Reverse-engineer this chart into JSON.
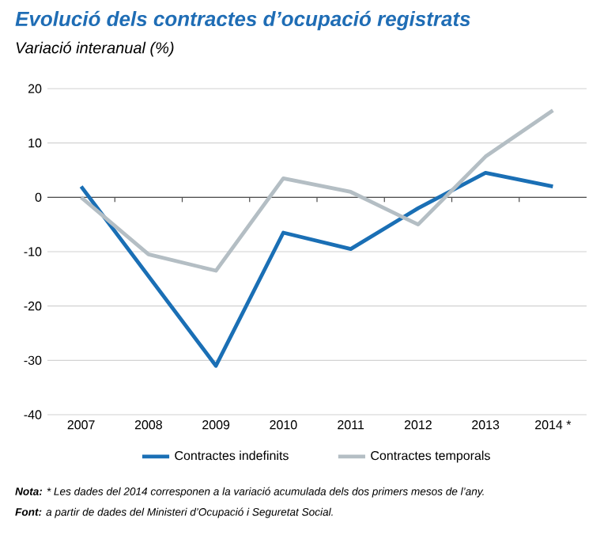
{
  "chart_data": {
    "type": "line",
    "title": "Evolució dels contractes d’ocupació registrats",
    "subtitle": "Variació interanual (%)",
    "categories": [
      "2007",
      "2008",
      "2009",
      "2010",
      "2011",
      "2012",
      "2013",
      "2014 *"
    ],
    "series": [
      {
        "name": "Contractes indefinits",
        "color": "#1a6fb5",
        "values": [
          2,
          -14.5,
          -31,
          -6.5,
          -9.5,
          -2,
          4.5,
          2
        ]
      },
      {
        "name": "Contractes temporals",
        "color": "#b4bec4",
        "values": [
          0,
          -10.5,
          -13.5,
          3.5,
          1,
          -5,
          7.5,
          16
        ]
      }
    ],
    "ylim": [
      -40,
      20
    ],
    "yticks": [
      -40,
      -30,
      -20,
      -10,
      0,
      10,
      20
    ],
    "grid": "y",
    "legend": "bottom",
    "marker": "none",
    "line_style": "solid",
    "annotations": [
      "**Nota:** * Les dades del 2014 corresponen a la variació acumulada dels dos primers mesos de l’any.",
      "**Font:** a partir de dades del Ministeri d’Ocupació i Seguretat Social."
    ]
  }
}
